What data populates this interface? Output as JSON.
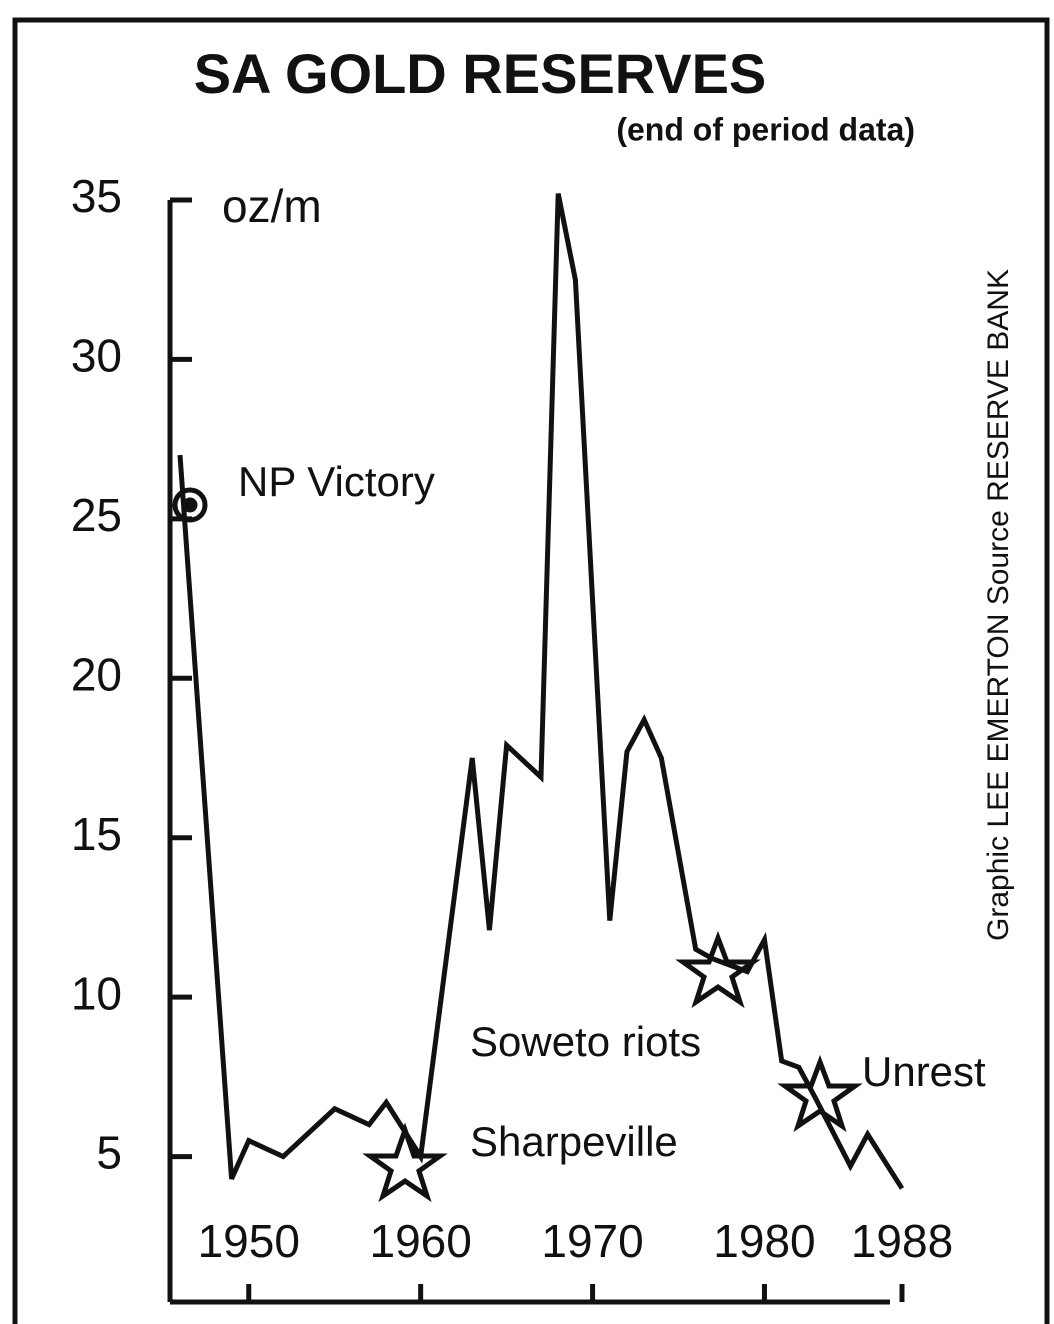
{
  "chart_data": {
    "type": "line",
    "title": "SA GOLD RESERVES",
    "subtitle": "(end of period data)",
    "y_label": "oz/m",
    "source": "Graphic  LEE EMERTON   Source  RESERVE BANK",
    "x": [
      1946,
      1949,
      1950,
      1952,
      1955,
      1957,
      1958,
      1960,
      1963,
      1964,
      1965,
      1967,
      1968,
      1969,
      1971,
      1972,
      1973,
      1974,
      1976,
      1977,
      1979,
      1980,
      1981,
      1982,
      1983,
      1985,
      1986,
      1988
    ],
    "series": [
      {
        "color": "#111111",
        "values": [
          27,
          4.3,
          5.5,
          5.0,
          6.5,
          6.0,
          6.7,
          5.0,
          17.5,
          12.1,
          17.9,
          16.9,
          35.2,
          32.5,
          12.4,
          17.7,
          18.7,
          17.5,
          11.5,
          11.2,
          10.8,
          11.8,
          8.0,
          7.8,
          6.8,
          4.7,
          5.7,
          4.0
        ]
      }
    ],
    "xlim": [
      1946,
      1988
    ],
    "xticks": [
      1950,
      1960,
      1970,
      1980,
      1988
    ],
    "ylim": [
      0,
      35
    ],
    "yticks": [
      5,
      10,
      15,
      20,
      25,
      30,
      35
    ],
    "annotations": [
      "NP Victory",
      "Soweto riots",
      "Sharpeville",
      "Unrest"
    ]
  }
}
